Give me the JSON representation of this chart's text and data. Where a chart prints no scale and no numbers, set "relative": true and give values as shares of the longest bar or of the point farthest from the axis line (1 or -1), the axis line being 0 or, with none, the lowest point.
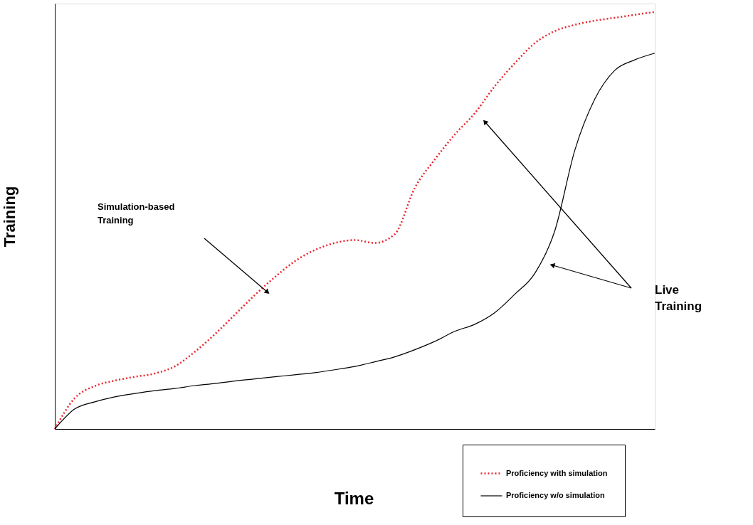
{
  "chart_data": {
    "type": "line",
    "relative": true,
    "xlabel": "Time",
    "ylabel": "Training",
    "categories": [
      null,
      null,
      null,
      null,
      null,
      null,
      null,
      null,
      null,
      null,
      null,
      null,
      null,
      null,
      null,
      null,
      null,
      null,
      null,
      null,
      null,
      null,
      null,
      null,
      null,
      null,
      null,
      null,
      null,
      null,
      null
    ],
    "series": [
      {
        "name": "Proficiency with simulation",
        "color": "#e8262d",
        "line_style": "dotted",
        "values": [
          0,
          0.074,
          0.103,
          0.116,
          0.125,
          0.133,
          0.15,
          0.185,
          0.227,
          0.274,
          0.321,
          0.364,
          0.402,
          0.429,
          0.446,
          0.453,
          0.446,
          0.467,
          0.578,
          0.646,
          0.706,
          0.757,
          0.822,
          0.877,
          0.925,
          0.954,
          0.969,
          0.979,
          0.986,
          0.993,
          1
        ]
      },
      {
        "name": "Proficiency w/o simulation",
        "color": "#000000",
        "line_style": "solid",
        "values": [
          0,
          0.048,
          0.065,
          0.077,
          0.085,
          0.092,
          0.097,
          0.104,
          0.109,
          0.115,
          0.12,
          0.125,
          0.13,
          0.135,
          0.142,
          0.15,
          0.161,
          0.173,
          0.19,
          0.21,
          0.234,
          0.251,
          0.279,
          0.323,
          0.373,
          0.475,
          0.668,
          0.791,
          0.86,
          0.885,
          0.901
        ]
      }
    ],
    "annotations": [
      "Simulation-based\nTraining",
      "Live\nTraining"
    ],
    "legend": "bottom right"
  }
}
